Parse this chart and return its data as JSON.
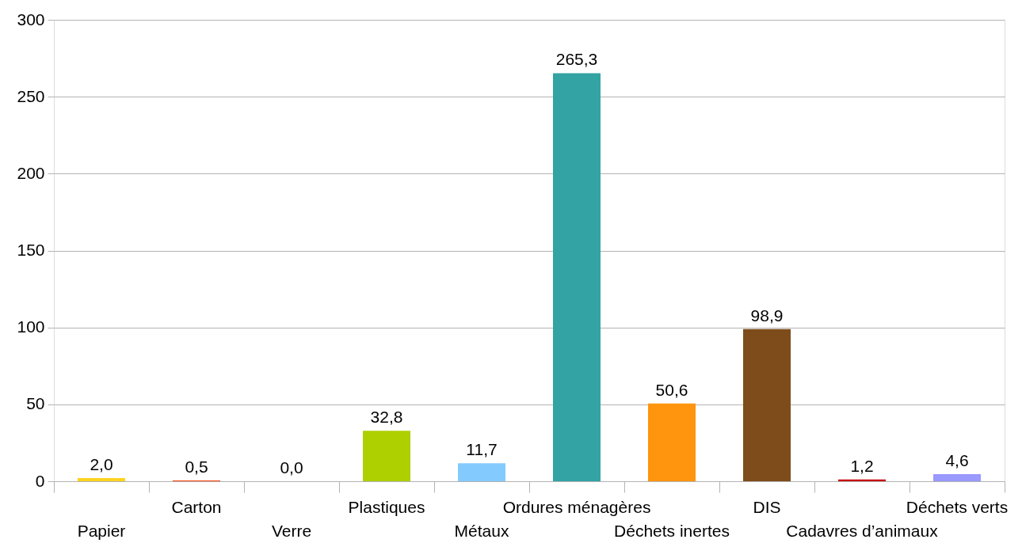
{
  "chart_data": {
    "type": "bar",
    "categories": [
      "Papier",
      "Carton",
      "Verre",
      "Plastiques",
      "Métaux",
      "Ordures ménagères",
      "Déchets inertes",
      "DIS",
      "Cadavres d’animaux",
      "Déchets verts"
    ],
    "values": [
      2.0,
      0.5,
      0.0,
      32.8,
      11.7,
      265.3,
      50.6,
      98.9,
      1.2,
      4.6
    ],
    "colors": [
      "#ffd320",
      "#ff420e",
      "#579d1c",
      "#aecf00",
      "#83caff",
      "#33a3a3",
      "#ff950e",
      "#7e4c1a",
      "#c5000b",
      "#9999ff"
    ],
    "value_labels": [
      "2,0",
      "0,5",
      "0,0",
      "32,8",
      "11,7",
      "265,3",
      "50,6",
      "98,9",
      "1,2",
      "4,6"
    ],
    "ylim": [
      0,
      300
    ],
    "yticks": [
      0,
      50,
      100,
      150,
      200,
      250,
      300
    ],
    "grid": "y"
  }
}
